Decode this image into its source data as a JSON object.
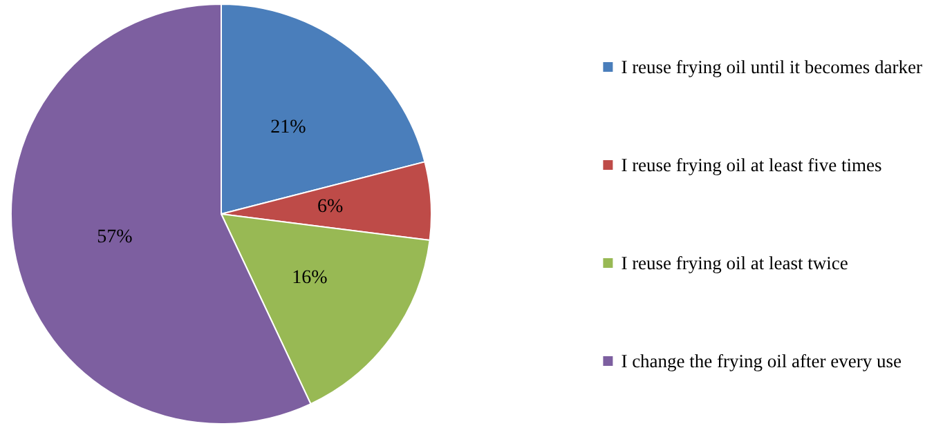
{
  "chart_data": {
    "type": "pie",
    "categories": [
      "I reuse frying oil until it becomes darker",
      "I reuse frying oil at least five times",
      "I reuse frying oil at least twice",
      "I change the frying oil after every use"
    ],
    "values": [
      21,
      6,
      16,
      57
    ],
    "colors": [
      "#4a7ebb",
      "#be4b48",
      "#98b954",
      "#7d5fa0"
    ],
    "value_labels": [
      "21%",
      "6%",
      "16%",
      "57%"
    ],
    "legend": "right"
  }
}
